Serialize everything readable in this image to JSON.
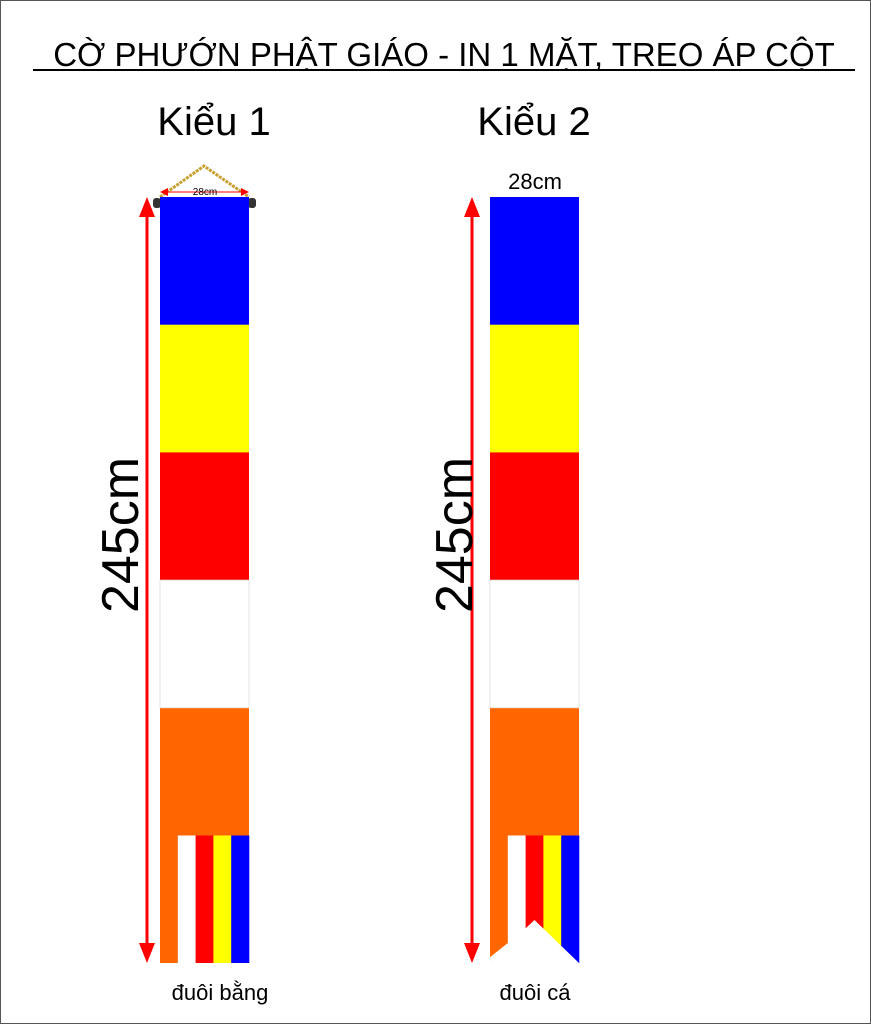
{
  "title": "CỜ PHƯỚN PHẬT GIÁO - IN 1 MẶT, TREO ÁP CỘT",
  "flags": [
    {
      "label": "Kiểu 1",
      "width_label": "28cm",
      "height_label": "245cm",
      "tail_label": "đuôi bằng",
      "tail": "flat"
    },
    {
      "label": "Kiểu 2",
      "width_label": "28cm",
      "height_label": "245cm",
      "tail_label": "đuôi cá",
      "tail": "fishtail"
    }
  ],
  "colors": {
    "blue": "#0000FF",
    "yellow": "#FFFF00",
    "red": "#FF0000",
    "white": "#FFFFFF",
    "orange": "#FF6600",
    "arrow": "#FF0000",
    "rope": "#C8A030"
  },
  "stripe_order": [
    "blue",
    "yellow",
    "red",
    "white",
    "orange"
  ],
  "tail_stripe_order": [
    "orange",
    "white",
    "red",
    "yellow",
    "blue"
  ]
}
